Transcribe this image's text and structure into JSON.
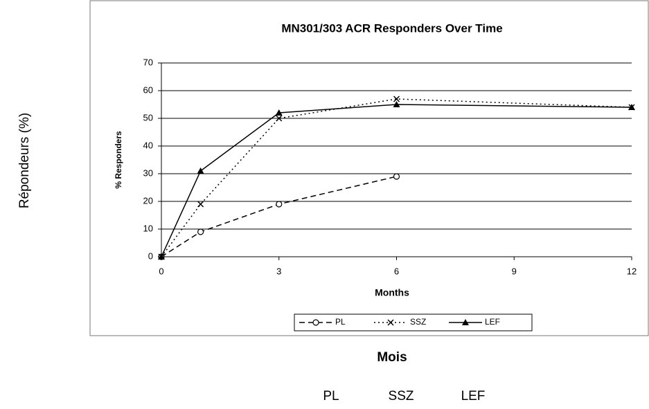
{
  "chart_data": {
    "type": "line",
    "title": "MN301/303 ACR Responders Over Time",
    "x_label": "Months",
    "y_label": "% Responders",
    "x": [
      0,
      1,
      3,
      6,
      12
    ],
    "xlim": [
      0,
      12
    ],
    "xticks": [
      0,
      3,
      6,
      9,
      12
    ],
    "ylim": [
      0,
      70
    ],
    "yticks": [
      0,
      10,
      20,
      30,
      40,
      50,
      60,
      70
    ],
    "grid": true,
    "legend": "bottom",
    "series": [
      {
        "name": "PL",
        "color": "#000000",
        "marker": "circle",
        "dash": "dashed",
        "values": [
          0,
          9,
          19,
          29,
          null
        ]
      },
      {
        "name": "SSZ",
        "color": "#000000",
        "marker": "x",
        "dash": "dotted",
        "values": [
          0,
          19,
          50,
          57,
          54
        ]
      },
      {
        "name": "LEF",
        "color": "#000000",
        "marker": "triangle",
        "dash": "solid",
        "values": [
          0,
          31,
          52,
          55,
          54
        ]
      }
    ]
  },
  "page": {
    "y_label": "Répondeurs (%)",
    "x_label": "Mois",
    "labels": [
      "PL",
      "SSZ",
      "LEF"
    ]
  }
}
